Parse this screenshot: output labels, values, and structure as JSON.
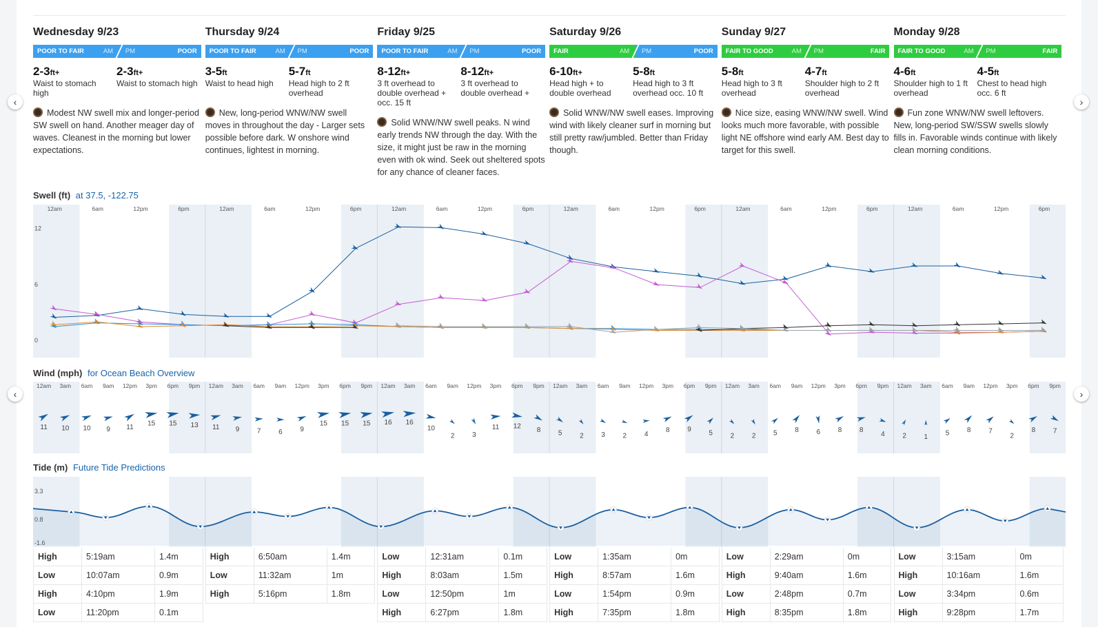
{
  "days": [
    {
      "date": "Wednesday 9/23",
      "rating_am": "POOR TO FAIR",
      "rating_pm": "POOR",
      "color_am": "#3ba0f0",
      "color_pm": "#3ba0f0",
      "am_height": "2-3",
      "am_plus": "+",
      "am_desc": "Waist to stomach high",
      "pm_height": "2-3",
      "pm_plus": "+",
      "pm_desc": "Waist to stomach high",
      "forecast": "Modest NW swell mix and longer-period SW swell on hand. Another meager day of waves. Cleanest in the morning but lower expectations.",
      "tides": [
        [
          "High",
          "5:19am",
          "1.4m"
        ],
        [
          "Low",
          "10:07am",
          "0.9m"
        ],
        [
          "High",
          "4:10pm",
          "1.9m"
        ],
        [
          "Low",
          "11:20pm",
          "0.1m"
        ]
      ]
    },
    {
      "date": "Thursday 9/24",
      "rating_am": "POOR TO FAIR",
      "rating_pm": "POOR",
      "color_am": "#3ba0f0",
      "color_pm": "#3ba0f0",
      "am_height": "3-5",
      "am_plus": "",
      "am_desc": "Waist to head high",
      "pm_height": "5-7",
      "pm_plus": "",
      "pm_desc": "Head high to 2 ft overhead",
      "forecast": "New, long-period WNW/NW swell moves in throughout the day - Larger sets possible before dark. W onshore wind continues, lightest in morning.",
      "tides": [
        [
          "High",
          "6:50am",
          "1.4m"
        ],
        [
          "Low",
          "11:32am",
          "1m"
        ],
        [
          "High",
          "5:16pm",
          "1.8m"
        ]
      ]
    },
    {
      "date": "Friday 9/25",
      "rating_am": "POOR TO FAIR",
      "rating_pm": "POOR",
      "color_am": "#3ba0f0",
      "color_pm": "#3ba0f0",
      "am_height": "8-12",
      "am_plus": "+",
      "am_desc": "3 ft overhead to double overhead + occ. 15 ft",
      "pm_height": "8-12",
      "pm_plus": "+",
      "pm_desc": "3 ft overhead to double overhead +",
      "forecast": "Solid WNW/NW swell peaks. N wind early trends NW through the day. With the size, it might just be raw in the morning even with ok wind. Seek out sheltered spots for any chance of cleaner faces.",
      "tides": [
        [
          "Low",
          "12:31am",
          "0.1m"
        ],
        [
          "High",
          "8:03am",
          "1.5m"
        ],
        [
          "Low",
          "12:50pm",
          "1m"
        ],
        [
          "High",
          "6:27pm",
          "1.8m"
        ]
      ]
    },
    {
      "date": "Saturday 9/26",
      "rating_am": "FAIR",
      "rating_pm": "POOR",
      "color_am": "#2ecc40",
      "color_pm": "#3ba0f0",
      "am_height": "6-10",
      "am_plus": "+",
      "am_desc": "Head high + to double overhead",
      "pm_height": "5-8",
      "pm_plus": "",
      "pm_desc": "Head high to 3 ft overhead occ. 10 ft",
      "forecast": "Solid WNW/NW swell eases. Improving wind with likely cleaner surf in morning but still pretty raw/jumbled. Better than Friday though.",
      "tides": [
        [
          "Low",
          "1:35am",
          "0m"
        ],
        [
          "High",
          "8:57am",
          "1.6m"
        ],
        [
          "Low",
          "1:54pm",
          "0.9m"
        ],
        [
          "High",
          "7:35pm",
          "1.8m"
        ]
      ]
    },
    {
      "date": "Sunday 9/27",
      "rating_am": "FAIR TO GOOD",
      "rating_pm": "FAIR",
      "color_am": "#2ecc40",
      "color_pm": "#2ecc40",
      "am_height": "5-8",
      "am_plus": "",
      "am_desc": "Head high to 3 ft overhead",
      "pm_height": "4-7",
      "pm_plus": "",
      "pm_desc": "Shoulder high to 2 ft overhead",
      "forecast": "Nice size, easing WNW/NW swell. Wind looks much more favorable, with possible light NE offshore wind early AM. Best day to target for this swell.",
      "tides": [
        [
          "Low",
          "2:29am",
          "0m"
        ],
        [
          "High",
          "9:40am",
          "1.6m"
        ],
        [
          "Low",
          "2:48pm",
          "0.7m"
        ],
        [
          "High",
          "8:35pm",
          "1.8m"
        ]
      ]
    },
    {
      "date": "Monday 9/28",
      "rating_am": "FAIR TO GOOD",
      "rating_pm": "FAIR",
      "color_am": "#2ecc40",
      "color_pm": "#2ecc40",
      "am_height": "4-6",
      "am_plus": "",
      "am_desc": "Shoulder high to 1 ft overhead",
      "pm_height": "4-5",
      "pm_plus": "",
      "pm_desc": "Chest to head high occ. 6 ft",
      "forecast": "Fun zone WNW/NW swell leftovers. New, long-period SW/SSW swells slowly fills in. Favorable winds continue with likely clean morning conditions.",
      "tides": [
        [
          "Low",
          "3:15am",
          "0m"
        ],
        [
          "High",
          "10:16am",
          "1.6m"
        ],
        [
          "Low",
          "3:34pm",
          "0.6m"
        ],
        [
          "High",
          "9:28pm",
          "1.7m"
        ]
      ]
    }
  ],
  "labels": {
    "am": "AM",
    "pm": "PM",
    "ft": "ft",
    "nav_prev": "‹",
    "nav_next": "›"
  },
  "swell": {
    "title": "Swell (ft)",
    "subtitle": "at 37.5, -122.75",
    "time_labels": [
      "12am",
      "6am",
      "12pm",
      "6pm"
    ],
    "y_ticks": [
      "12",
      "6",
      "0"
    ],
    "ylim": [
      0,
      13
    ],
    "series": [
      {
        "color": "#1a5fa0",
        "values": [
          2.4,
          2.6,
          3.3,
          2.7,
          2.5,
          2.5,
          5.2,
          9.8,
          12.1,
          12.0,
          11.3,
          10.3,
          8.7,
          7.8,
          7.3,
          6.8,
          6.0,
          6.5,
          7.9,
          7.3,
          7.9,
          7.9,
          7.1,
          6.6
        ]
      },
      {
        "color": "#c45ad4",
        "values": [
          3.3,
          2.7,
          1.9,
          1.6,
          1.5,
          1.6,
          2.7,
          1.8,
          3.8,
          4.5,
          4.2,
          5.1,
          8.4,
          7.7,
          5.9,
          5.6,
          7.9,
          6.1,
          0.6,
          0.8,
          0.7,
          0.7,
          0.8,
          0.9
        ]
      },
      {
        "color": "#2d8fd8",
        "values": [
          1.4,
          1.8,
          1.7,
          1.6,
          1.5,
          1.6,
          1.7,
          1.6,
          1.4,
          1.3,
          1.3,
          1.3,
          1.2,
          1.2,
          1.1,
          1.1,
          1.1,
          1.0,
          1.0,
          1.0,
          1.0,
          1.0,
          1.0,
          1.0
        ]
      },
      {
        "color": "#e08a2c",
        "values": [
          1.6,
          1.9,
          1.4,
          1.5,
          1.6,
          1.4,
          1.4,
          1.5,
          1.4,
          1.3,
          1.3,
          1.3,
          1.2,
          1.1,
          1.0,
          1.0,
          1.0,
          1.0,
          1.0,
          1.0,
          1.0,
          0.8,
          0.8,
          0.9
        ]
      },
      {
        "color": "#333333",
        "values": [
          null,
          null,
          null,
          null,
          1.5,
          1.3,
          1.3,
          1.3,
          null,
          null,
          null,
          null,
          null,
          null,
          null,
          1.0,
          1.2,
          1.3,
          1.5,
          1.6,
          1.5,
          1.6,
          1.7,
          1.8
        ]
      },
      {
        "color": "#9aa3ab",
        "values": [
          null,
          null,
          null,
          null,
          null,
          null,
          null,
          null,
          1.5,
          1.4,
          1.4,
          1.4,
          1.4,
          0.8,
          1.1,
          1.3,
          1.2,
          1.0,
          1.0,
          1.0,
          1.0,
          1.0,
          1.0,
          1.0
        ]
      }
    ]
  },
  "wind": {
    "title": "Wind (mph)",
    "subtitle": "for Ocean Beach Overview",
    "time_labels": [
      "12am",
      "3am",
      "6am",
      "9am",
      "12pm",
      "3pm",
      "6pm",
      "9pm"
    ],
    "speeds": [
      11,
      10,
      10,
      9,
      11,
      15,
      15,
      13,
      11,
      9,
      7,
      6,
      9,
      15,
      15,
      15,
      16,
      16,
      10,
      2,
      3,
      11,
      12,
      8,
      5,
      2,
      3,
      2,
      4,
      8,
      9,
      5,
      2,
      2,
      5,
      8,
      6,
      8,
      8,
      4,
      2,
      1,
      5,
      8,
      7,
      2,
      8,
      7
    ],
    "directions": [
      -30,
      -25,
      -20,
      -15,
      -30,
      -10,
      -10,
      -5,
      -15,
      -10,
      -5,
      0,
      -20,
      -10,
      -10,
      -10,
      -10,
      -5,
      10,
      40,
      60,
      -5,
      10,
      30,
      35,
      50,
      30,
      20,
      -5,
      -25,
      -35,
      -45,
      45,
      60,
      -40,
      -50,
      80,
      -30,
      -15,
      20,
      -60,
      -90,
      -35,
      -45,
      -40,
      40,
      -30,
      30
    ],
    "color": "#1a5fa0"
  },
  "tide": {
    "title": "Tide (m)",
    "subtitle": "Future Tide Predictions",
    "y_ticks": [
      "3.3",
      "0.8",
      "-1.6"
    ],
    "ylim": [
      -1.6,
      3.3
    ],
    "curve_color": "#1a5fa0"
  }
}
